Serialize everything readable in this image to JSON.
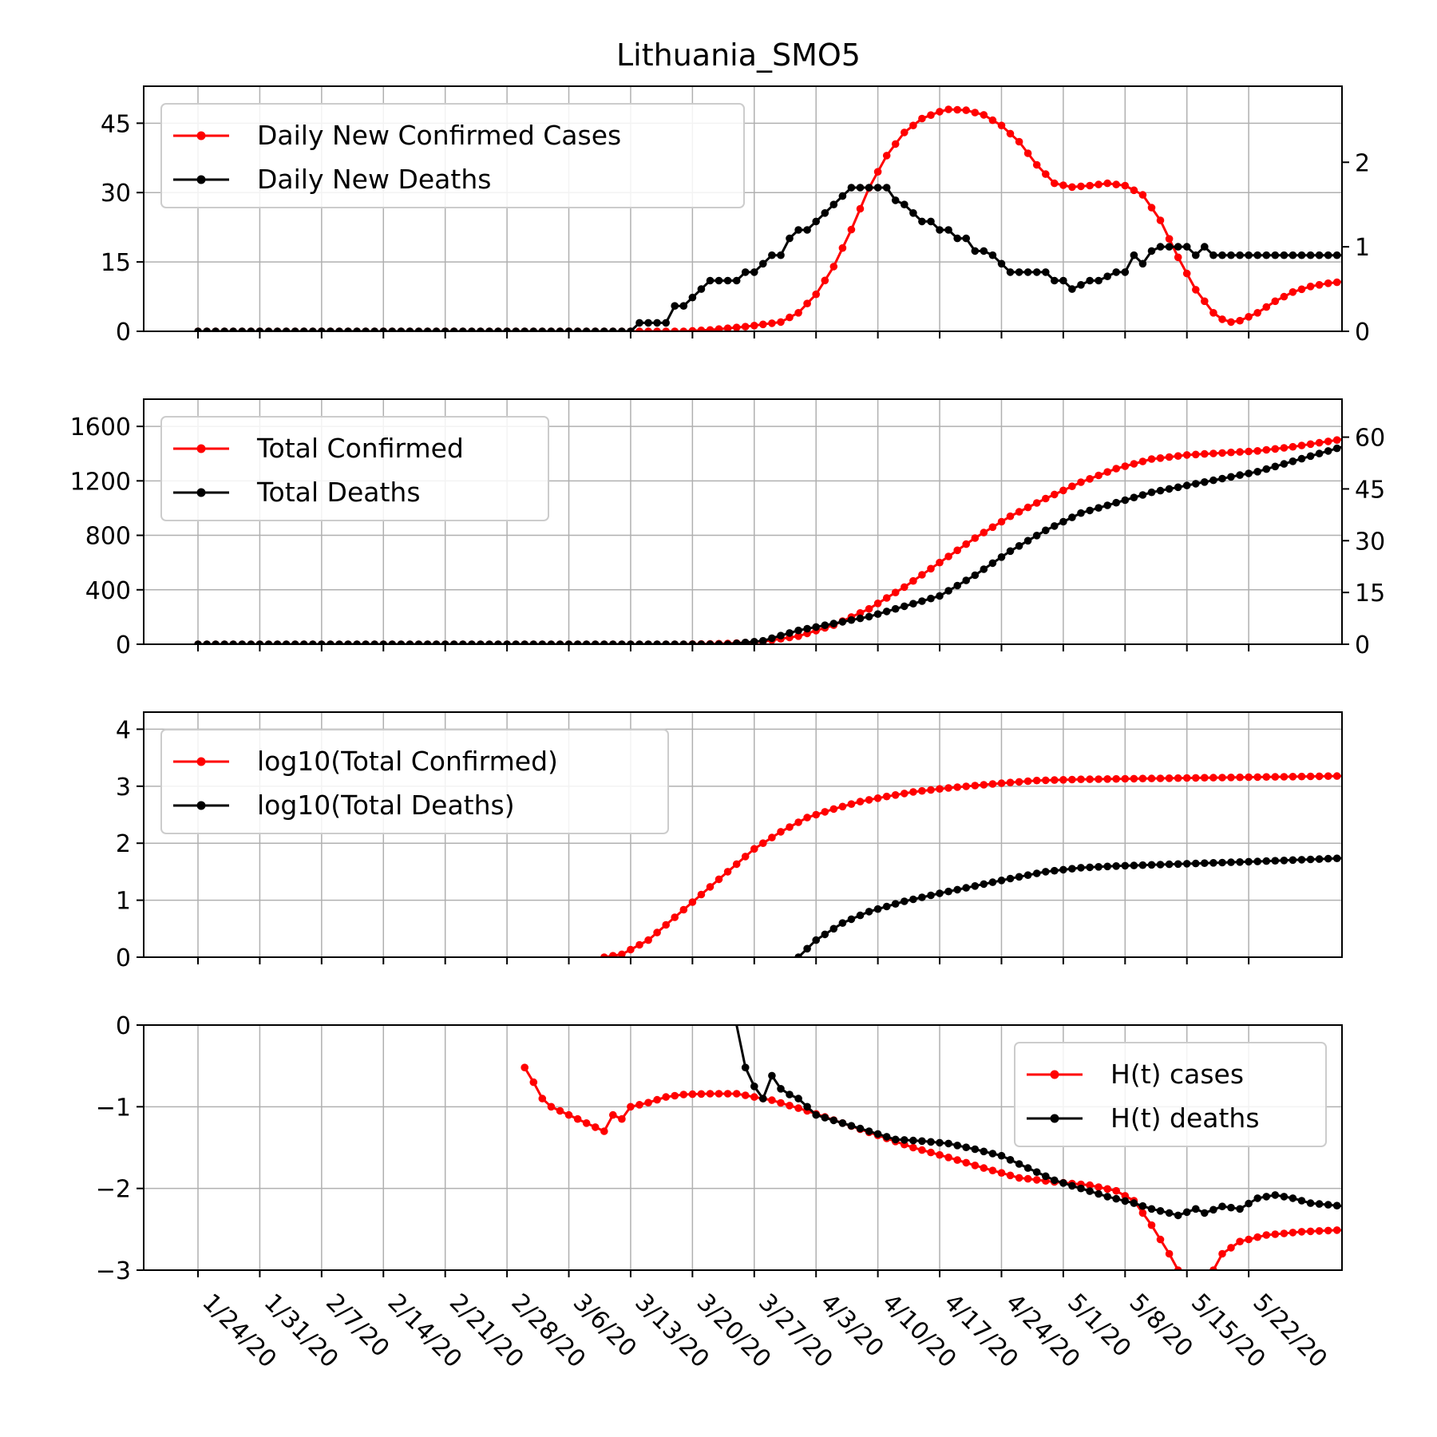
{
  "title": "Lithuania_SMO5",
  "x_dates": [
    "1/24/20",
    "1/31/20",
    "2/7/20",
    "2/14/20",
    "2/21/20",
    "2/28/20",
    "3/6/20",
    "3/13/20",
    "3/20/20",
    "3/27/20",
    "4/3/20",
    "4/10/20",
    "4/17/20",
    "4/24/20",
    "5/1/20",
    "5/8/20",
    "5/15/20",
    "5/22/20"
  ],
  "colors": {
    "cases": "#ff0000",
    "deaths": "#000000"
  },
  "chart_data": [
    {
      "type": "line",
      "panel": "daily",
      "legend": [
        "Daily New Confirmed Cases",
        "Daily New Deaths"
      ],
      "legend_position": "upper-left",
      "left_ticks": [
        "0",
        "15",
        "30",
        "45"
      ],
      "right_ticks": [
        "0",
        "1",
        "2"
      ],
      "ylim_left": [
        0,
        53
      ],
      "ylim_right": [
        0,
        2.9
      ],
      "grid": true,
      "cases_anchors": [
        [
          0,
          0
        ],
        [
          55,
          0
        ],
        [
          58,
          0.3
        ],
        [
          62,
          1
        ],
        [
          66,
          2
        ],
        [
          68,
          4
        ],
        [
          70,
          8
        ],
        [
          72,
          14
        ],
        [
          74,
          22
        ],
        [
          76,
          31
        ],
        [
          78,
          38
        ],
        [
          80,
          43
        ],
        [
          82,
          46
        ],
        [
          84,
          47.5
        ],
        [
          85,
          48
        ],
        [
          87,
          47.8
        ],
        [
          89,
          46.8
        ],
        [
          91,
          44.5
        ],
        [
          93,
          41
        ],
        [
          95,
          36
        ],
        [
          97,
          32
        ],
        [
          99,
          31.2
        ],
        [
          101,
          31.5
        ],
        [
          103,
          32
        ],
        [
          105,
          31.5
        ],
        [
          107,
          29.5
        ],
        [
          109,
          24
        ],
        [
          111,
          16
        ],
        [
          113,
          9
        ],
        [
          115,
          4
        ],
        [
          116,
          2.6
        ],
        [
          117,
          2
        ],
        [
          118,
          2.3
        ],
        [
          120,
          4
        ],
        [
          122,
          6.5
        ],
        [
          124,
          8.5
        ],
        [
          126,
          9.7
        ],
        [
          128,
          10.4
        ],
        [
          130,
          10.8
        ],
        [
          132,
          11
        ],
        [
          140,
          11.3
        ]
      ],
      "deaths_steps": [
        [
          0,
          0
        ],
        [
          50,
          0.1
        ],
        [
          54,
          0.3
        ],
        [
          56,
          0.4
        ],
        [
          57,
          0.5
        ],
        [
          58,
          0.6
        ],
        [
          62,
          0.7
        ],
        [
          64,
          0.8
        ],
        [
          65,
          0.9
        ],
        [
          67,
          1.1
        ],
        [
          68,
          1.2
        ],
        [
          70,
          1.3
        ],
        [
          71,
          1.4
        ],
        [
          72,
          1.5
        ],
        [
          73,
          1.6
        ],
        [
          74,
          1.7
        ],
        [
          79,
          1.55
        ],
        [
          80,
          1.5
        ],
        [
          81,
          1.4
        ],
        [
          82,
          1.3
        ],
        [
          84,
          1.2
        ],
        [
          86,
          1.1
        ],
        [
          88,
          0.95
        ],
        [
          90,
          0.9
        ],
        [
          91,
          0.8
        ],
        [
          92,
          0.7
        ],
        [
          96,
          0.7
        ],
        [
          97,
          0.6
        ],
        [
          99,
          0.5
        ],
        [
          100,
          0.55
        ],
        [
          101,
          0.6
        ],
        [
          103,
          0.65
        ],
        [
          104,
          0.7
        ],
        [
          106,
          0.9
        ],
        [
          107,
          0.8
        ],
        [
          108,
          0.95
        ],
        [
          109,
          1.0
        ],
        [
          110,
          1.0
        ],
        [
          112,
          1.0
        ],
        [
          113,
          0.9
        ],
        [
          114,
          1.0
        ],
        [
          115,
          0.9
        ],
        [
          116,
          0.9
        ],
        [
          119,
          0.9
        ]
      ]
    },
    {
      "type": "line",
      "panel": "total",
      "legend": [
        "Total Confirmed",
        "Total Deaths"
      ],
      "legend_position": "upper-left",
      "left_ticks": [
        "0",
        "400",
        "800",
        "1200",
        "1600"
      ],
      "right_ticks": [
        "0",
        "15",
        "30",
        "45",
        "60"
      ],
      "ylim_left": [
        0,
        1800
      ],
      "ylim_right": [
        0,
        71
      ],
      "grid": true,
      "cases_anchors": [
        [
          0,
          0
        ],
        [
          55,
          0
        ],
        [
          60,
          5
        ],
        [
          64,
          20
        ],
        [
          68,
          60
        ],
        [
          72,
          140
        ],
        [
          76,
          260
        ],
        [
          80,
          420
        ],
        [
          84,
          600
        ],
        [
          88,
          780
        ],
        [
          92,
          940
        ],
        [
          96,
          1070
        ],
        [
          100,
          1190
        ],
        [
          104,
          1290
        ],
        [
          108,
          1360
        ],
        [
          112,
          1390
        ],
        [
          116,
          1405
        ],
        [
          120,
          1420
        ],
        [
          124,
          1450
        ],
        [
          128,
          1490
        ],
        [
          132,
          1530
        ],
        [
          136,
          1580
        ],
        [
          140,
          1640
        ]
      ],
      "deaths_anchors": [
        [
          0,
          0
        ],
        [
          60,
          0
        ],
        [
          64,
          1
        ],
        [
          68,
          4
        ],
        [
          72,
          6
        ],
        [
          76,
          8
        ],
        [
          80,
          11
        ],
        [
          84,
          14
        ],
        [
          88,
          20
        ],
        [
          92,
          27
        ],
        [
          96,
          33
        ],
        [
          100,
          38
        ],
        [
          104,
          41
        ],
        [
          108,
          44
        ],
        [
          112,
          46
        ],
        [
          116,
          48
        ],
        [
          120,
          50
        ],
        [
          124,
          53
        ],
        [
          128,
          56
        ],
        [
          132,
          59
        ],
        [
          136,
          62
        ],
        [
          140,
          65
        ]
      ]
    },
    {
      "type": "line",
      "panel": "log",
      "legend": [
        "log10(Total Confirmed)",
        "log10(Total Deaths)"
      ],
      "legend_position": "upper-left",
      "left_ticks": [
        "0",
        "1",
        "2",
        "3",
        "4"
      ],
      "ylim_left": [
        0,
        4.3
      ],
      "grid": true,
      "cases_anchors": [
        [
          46,
          0
        ],
        [
          48,
          0.05
        ],
        [
          51,
          0.3
        ],
        [
          54,
          0.7
        ],
        [
          57,
          1.1
        ],
        [
          60,
          1.5
        ],
        [
          63,
          1.9
        ],
        [
          66,
          2.2
        ],
        [
          69,
          2.45
        ],
        [
          72,
          2.6
        ],
        [
          75,
          2.73
        ],
        [
          78,
          2.82
        ],
        [
          81,
          2.9
        ],
        [
          85,
          2.97
        ],
        [
          90,
          3.04
        ],
        [
          95,
          3.1
        ],
        [
          100,
          3.12
        ],
        [
          110,
          3.14
        ],
        [
          120,
          3.16
        ],
        [
          130,
          3.18
        ],
        [
          140,
          3.2
        ]
      ],
      "deaths_anchors": [
        [
          68,
          0
        ],
        [
          70,
          0.3
        ],
        [
          73,
          0.6
        ],
        [
          76,
          0.8
        ],
        [
          80,
          0.98
        ],
        [
          84,
          1.12
        ],
        [
          88,
          1.25
        ],
        [
          92,
          1.38
        ],
        [
          96,
          1.5
        ],
        [
          100,
          1.57
        ],
        [
          104,
          1.6
        ],
        [
          110,
          1.63
        ],
        [
          120,
          1.68
        ],
        [
          130,
          1.74
        ],
        [
          140,
          1.8
        ]
      ]
    },
    {
      "type": "line",
      "panel": "hazard",
      "legend": [
        "H(t) cases",
        "H(t) deaths"
      ],
      "legend_position": "upper-right",
      "left_ticks": [
        "0",
        "−1",
        "−2",
        "−3"
      ],
      "ylim_left": [
        -3,
        0
      ],
      "grid": true,
      "cases_anchors": [
        [
          37,
          -0.52
        ],
        [
          38,
          -0.7
        ],
        [
          39,
          -0.9
        ],
        [
          40,
          -1.0
        ],
        [
          42,
          -1.1
        ],
        [
          44,
          -1.2
        ],
        [
          46,
          -1.3
        ],
        [
          47,
          -1.1
        ],
        [
          48,
          -1.15
        ],
        [
          49,
          -1.0
        ],
        [
          51,
          -0.95
        ],
        [
          53,
          -0.88
        ],
        [
          55,
          -0.85
        ],
        [
          58,
          -0.84
        ],
        [
          61,
          -0.84
        ],
        [
          65,
          -0.92
        ],
        [
          69,
          -1.05
        ],
        [
          73,
          -1.2
        ],
        [
          77,
          -1.35
        ],
        [
          81,
          -1.5
        ],
        [
          85,
          -1.62
        ],
        [
          89,
          -1.75
        ],
        [
          93,
          -1.87
        ],
        [
          97,
          -1.92
        ],
        [
          101,
          -1.96
        ],
        [
          104,
          -2.03
        ],
        [
          106,
          -2.15
        ],
        [
          108,
          -2.45
        ],
        [
          110,
          -2.8
        ],
        [
          111,
          -3.0
        ]
      ],
      "cases_anchors_2": [
        [
          115,
          -3.0
        ],
        [
          116,
          -2.8
        ],
        [
          118,
          -2.65
        ],
        [
          121,
          -2.57
        ],
        [
          125,
          -2.53
        ],
        [
          129,
          -2.51
        ],
        [
          133,
          -2.52
        ],
        [
          137,
          -2.53
        ]
      ],
      "deaths_anchors": [
        [
          61,
          0
        ],
        [
          62,
          -0.52
        ],
        [
          63,
          -0.75
        ],
        [
          64,
          -0.9
        ],
        [
          65,
          -0.62
        ],
        [
          66,
          -0.78
        ],
        [
          67,
          -0.85
        ],
        [
          68,
          -0.9
        ],
        [
          70,
          -1.1
        ],
        [
          73,
          -1.2
        ],
        [
          76,
          -1.3
        ],
        [
          79,
          -1.4
        ],
        [
          82,
          -1.42
        ],
        [
          85,
          -1.45
        ],
        [
          88,
          -1.52
        ],
        [
          91,
          -1.6
        ],
        [
          94,
          -1.75
        ],
        [
          97,
          -1.9
        ],
        [
          100,
          -2.0
        ],
        [
          103,
          -2.1
        ],
        [
          106,
          -2.18
        ],
        [
          108,
          -2.25
        ],
        [
          110,
          -2.3
        ],
        [
          111,
          -2.33
        ],
        [
          113,
          -2.25
        ],
        [
          114,
          -2.3
        ],
        [
          116,
          -2.22
        ],
        [
          118,
          -2.25
        ],
        [
          120,
          -2.12
        ],
        [
          122,
          -2.08
        ],
        [
          124,
          -2.12
        ],
        [
          126,
          -2.18
        ],
        [
          128,
          -2.2
        ],
        [
          130,
          -2.22
        ],
        [
          132,
          -2.22
        ]
      ]
    }
  ]
}
